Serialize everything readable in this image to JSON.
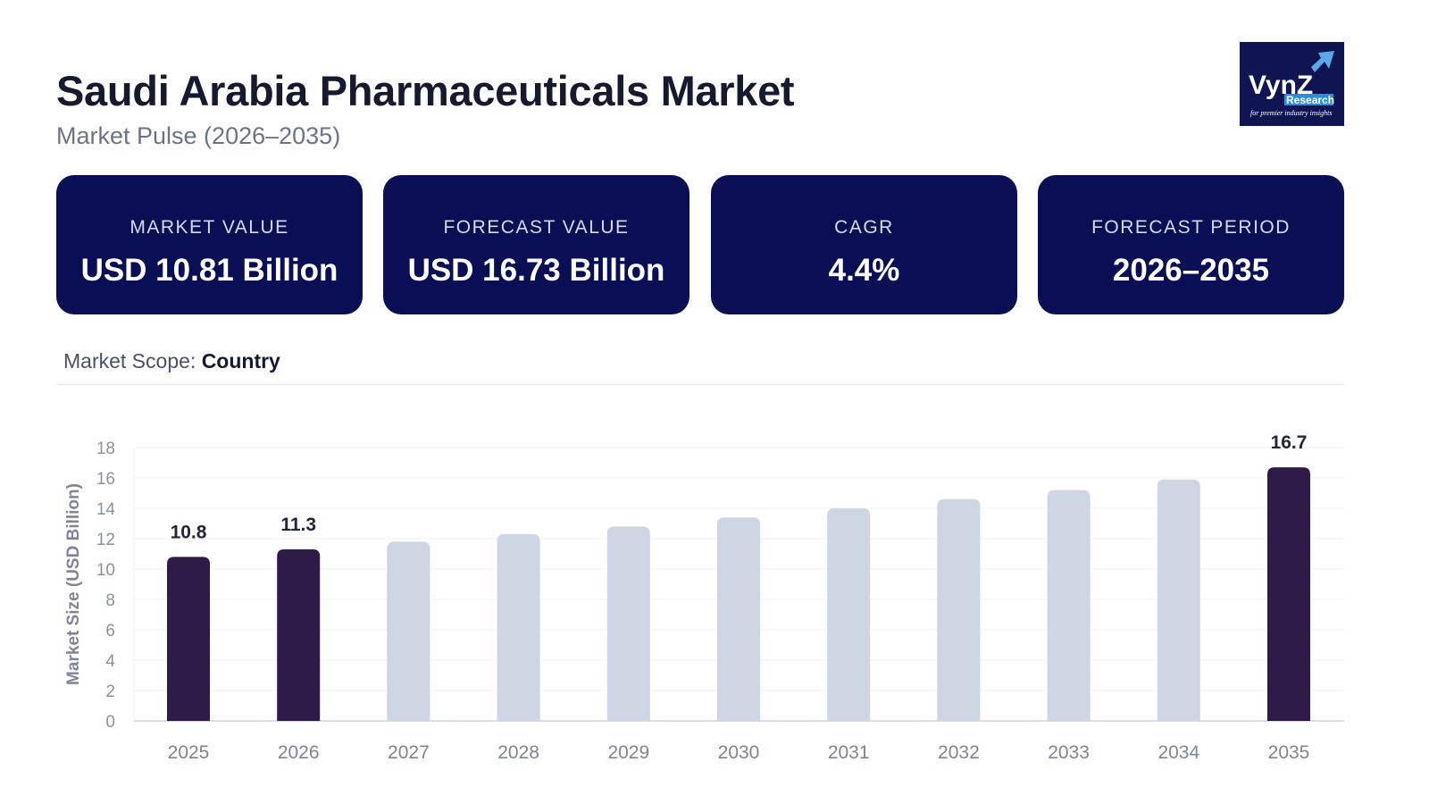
{
  "header": {
    "title": "Saudi Arabia Pharmaceuticals Market",
    "subtitle": "Market Pulse (2026–2035)"
  },
  "logo": {
    "text": "VynZ Research",
    "tagline": "for premier industry insights"
  },
  "cards": [
    {
      "label": "MARKET VALUE",
      "value": "USD 10.81 Billion"
    },
    {
      "label": "FORECAST VALUE",
      "value": "USD 16.73 Billion"
    },
    {
      "label": "CAGR",
      "value": "4.4%"
    },
    {
      "label": "FORECAST PERIOD",
      "value": "2026–2035"
    }
  ],
  "scope": {
    "label": "Market Scope:",
    "value": "Country"
  },
  "chart_data": {
    "type": "bar",
    "title": "",
    "xlabel": "",
    "ylabel": "Market Size (USD Billion)",
    "ylim": [
      0,
      18
    ],
    "yticks": [
      0,
      2,
      4,
      6,
      8,
      10,
      12,
      14,
      16,
      18
    ],
    "grid": true,
    "categories": [
      "2025",
      "2026",
      "2027",
      "2028",
      "2029",
      "2030",
      "2031",
      "2032",
      "2033",
      "2034",
      "2035"
    ],
    "values": [
      10.8,
      11.3,
      11.8,
      12.3,
      12.8,
      13.4,
      14.0,
      14.6,
      15.2,
      15.9,
      16.7
    ],
    "data_labels": {
      "0": "10.8",
      "1": "11.3",
      "10": "16.7"
    },
    "colors": {
      "highlight": "#2e1b47",
      "default": "#cdd6e2"
    },
    "highlighted": [
      0,
      1,
      10
    ]
  }
}
